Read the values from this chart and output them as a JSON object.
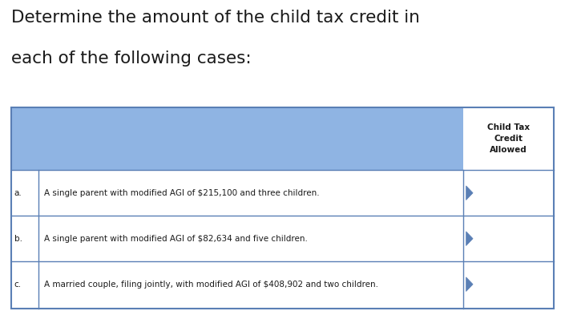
{
  "title_line1": "Determine the amount of the child tax credit in",
  "title_line2": "each of the following cases:",
  "header_text": "Child Tax\nCredit\nAllowed",
  "rows": [
    {
      "label": "a.",
      "text": "A single parent with modified AGI of $215,100 and three children."
    },
    {
      "label": "b.",
      "text": "A single parent with modified AGI of $82,634 and five children."
    },
    {
      "label": "c.",
      "text": "A married couple, filing jointly, with modified AGI of $408,902 and two children."
    }
  ],
  "header_bg": "#8fb4e3",
  "row_bg_white": "#ffffff",
  "table_border": "#5a7fb5",
  "title_color": "#1a1a1a",
  "text_color": "#1a1a1a",
  "header_text_color": "#1a1a1a",
  "bg_color": "#ffffff",
  "arrow_color": "#5a7fb5"
}
